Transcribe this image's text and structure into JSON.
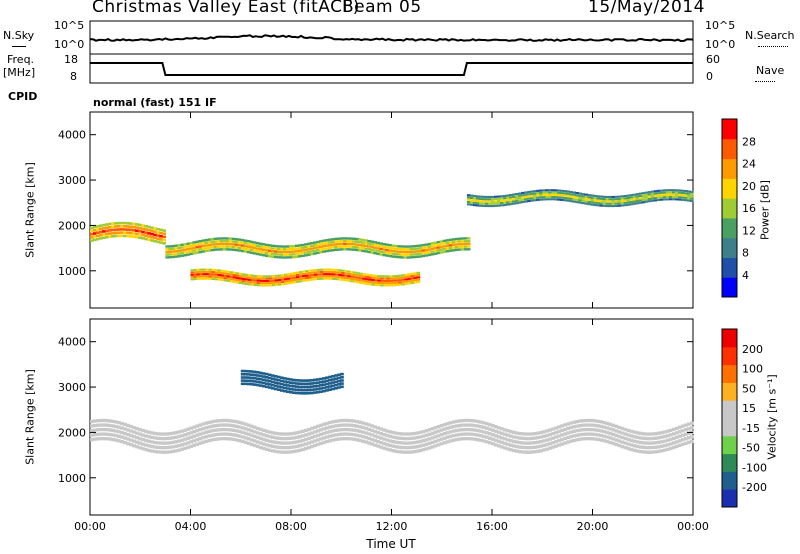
{
  "header": {
    "station": "Christmas Valley East (fitACF)",
    "beam": "Beam 05",
    "date": "15/May/2014"
  },
  "noise_panel": {
    "left_label": "N.Sky",
    "right_label": "N.Search",
    "left_ticks": [
      "10^5",
      "10^0"
    ],
    "right_ticks": [
      "10^5",
      "10^0"
    ]
  },
  "freq_panel": {
    "left_label_line1": "Freq.",
    "left_label_line2": "[MHz]",
    "left_ticks": [
      "18",
      "8"
    ],
    "right_label": "Nave",
    "right_ticks": [
      "60",
      "0"
    ]
  },
  "cpid": {
    "label": "CPID",
    "value": "normal (fast) 151 IF"
  },
  "colors": {
    "power_scale": [
      "#0000ff",
      "#1f4fa8",
      "#3e7f8c",
      "#4aa060",
      "#9fcc33",
      "#ffd400",
      "#ff9900",
      "#ff5a00",
      "#ff0000"
    ],
    "velocity_scale": [
      "#1a2fb0",
      "#1f5f8c",
      "#2e8b57",
      "#6fd04a",
      "#c8c8c8",
      "#c8c8c8",
      "#ffb020",
      "#ff7000",
      "#ff3000",
      "#ee0000"
    ]
  },
  "chart_data": [
    {
      "type": "heatmap",
      "name": "power",
      "ylabel": "Slant Range [km]",
      "xlabel": "",
      "xlim": [
        0,
        24
      ],
      "ylim": [
        180,
        4500
      ],
      "y_ticks": [
        "1000",
        "2000",
        "3000",
        "4000"
      ],
      "x_ticks": [
        "00:00",
        "04:00",
        "08:00",
        "12:00",
        "16:00",
        "20:00",
        "00:00"
      ],
      "colorbar": {
        "label": "Power [dB]",
        "ticks": [
          "28",
          "24",
          "20",
          "16",
          "12",
          "8",
          "4"
        ],
        "range": [
          0,
          30
        ]
      },
      "features": [
        {
          "t0": 0.0,
          "t1": 3.0,
          "range_center": 1800,
          "range_width": 350,
          "value": 26
        },
        {
          "t0": 3.0,
          "t1": 15.0,
          "range_center": 1500,
          "range_width": 300,
          "value": 22
        },
        {
          "t0": 4.0,
          "t1": 13.0,
          "range_center": 850,
          "range_width": 250,
          "value": 27
        },
        {
          "t0": 15.0,
          "t1": 24.0,
          "range_center": 2600,
          "range_width": 250,
          "value": 18
        }
      ]
    },
    {
      "type": "heatmap",
      "name": "velocity",
      "ylabel": "Slant Range [km]",
      "xlabel": "Time UT",
      "xlim": [
        0,
        24
      ],
      "ylim": [
        180,
        4500
      ],
      "y_ticks": [
        "1000",
        "2000",
        "3000",
        "4000"
      ],
      "x_ticks": [
        "00:00",
        "04:00",
        "08:00",
        "12:00",
        "16:00",
        "20:00",
        "00:00"
      ],
      "colorbar": {
        "label": "Velocity [m s⁻¹]",
        "ticks": [
          "200",
          "100",
          "50",
          "15",
          "-15",
          "-50",
          "-100",
          "-200"
        ],
        "range": [
          -250,
          250
        ]
      },
      "features": [
        {
          "t0": 6.0,
          "t1": 10.0,
          "range_center": 3100,
          "range_width": 350,
          "value": -180
        },
        {
          "t0": 0.0,
          "t1": 24.0,
          "range_center": 1900,
          "range_width": 500,
          "value": 0
        }
      ]
    }
  ]
}
